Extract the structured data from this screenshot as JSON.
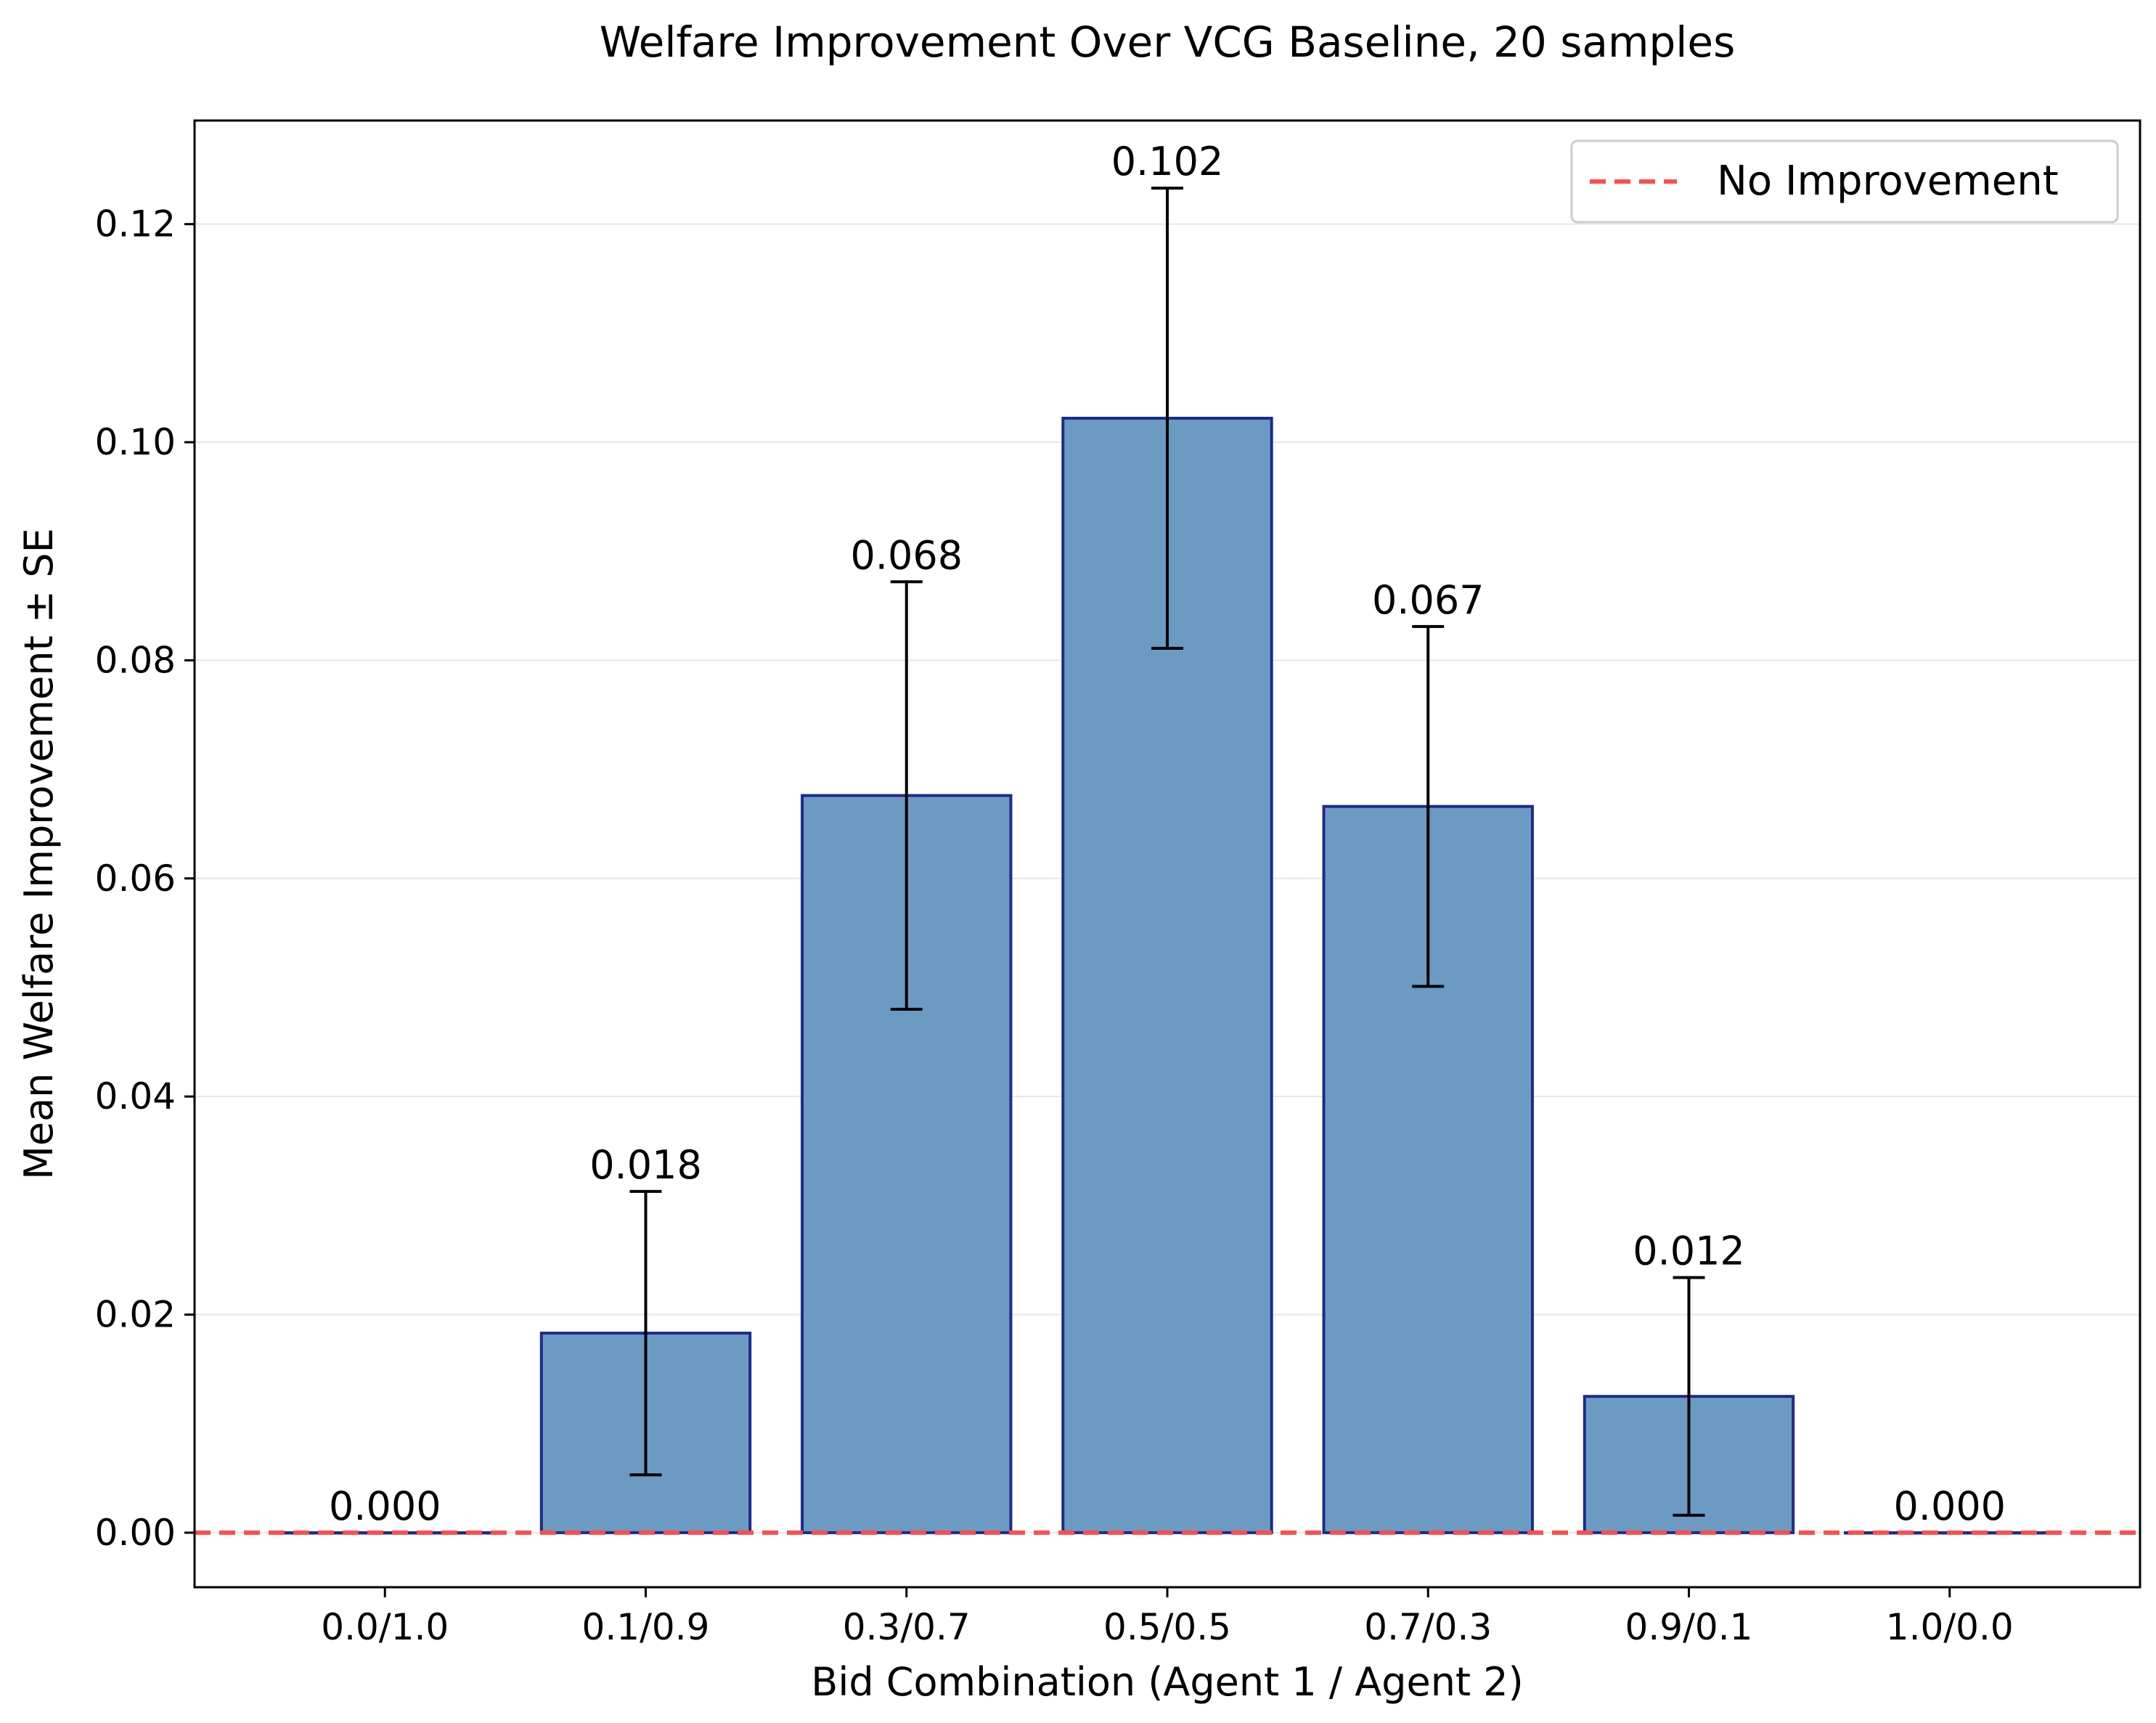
{
  "chart_data": {
    "type": "bar",
    "title": "Welfare Improvement Over VCG Baseline, 20 samples",
    "xlabel": "Bid Combination (Agent 1 / Agent 2)",
    "ylabel": "Mean Welfare Improvement ± SE",
    "categories": [
      "0.0/1.0",
      "0.1/0.9",
      "0.3/0.7",
      "0.5/0.5",
      "0.7/0.3",
      "0.9/0.1",
      "1.0/0.0"
    ],
    "values": [
      0.0,
      0.0183,
      0.0676,
      0.1022,
      0.0666,
      0.0125,
      0.0
    ],
    "errors": [
      0.0,
      0.013,
      0.0196,
      0.0211,
      0.0165,
      0.0109,
      0.0
    ],
    "value_labels": [
      "0.000",
      "0.018",
      "0.068",
      "0.102",
      "0.067",
      "0.012",
      "0.000"
    ],
    "ylim": [
      -0.005,
      0.1295
    ],
    "yticks": [
      0.0,
      0.02,
      0.04,
      0.06,
      0.08,
      0.1,
      0.12
    ],
    "ytick_labels": [
      "0.00",
      "0.02",
      "0.04",
      "0.06",
      "0.08",
      "0.10",
      "0.12"
    ],
    "grid": "horizontal",
    "bar_color": "#6b9bc3",
    "bar_edge_color": "#1f2a8a",
    "reference_line": {
      "value": 0.0,
      "label": "No Improvement",
      "color": "#ff4d4d",
      "style": "dashed"
    },
    "legend": {
      "placement": "top-right",
      "entries": [
        "No Improvement"
      ]
    }
  }
}
